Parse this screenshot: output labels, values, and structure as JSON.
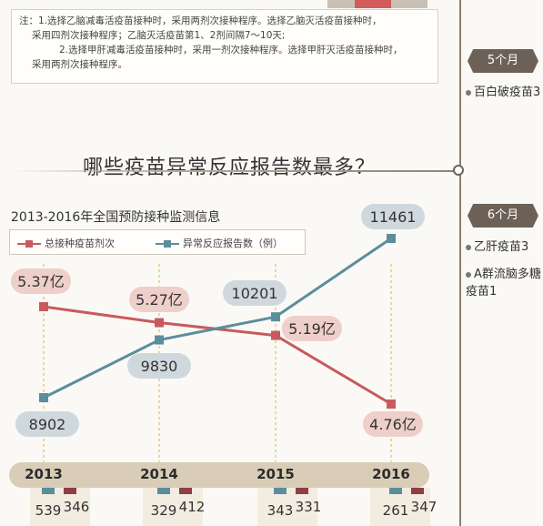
{
  "notes": [
    "注：1.选择乙脑减毒活疫苗接种时，采用两剂次接种程序。选择乙脑灭活疫苗接种时，",
    "采用四剂次接种程序；乙脑灭活疫苗第1、2剂间隔7～10天;",
    "2.选择甲肝减毒活疫苗接种时，采用一剂次接种程序。选择甲肝灭活疫苗接种时，",
    "采用两剂次接种程序。"
  ],
  "heading": "哪些疫苗异常反应报告数最多？",
  "chart_title": "2013-2016年全国预防接种监测信息",
  "legend": {
    "doses": "总接种疫苗剂次",
    "reports": "异常反应报告数（例）"
  },
  "colors": {
    "doses": "#c85a5e",
    "reports": "#5b8e9c",
    "doses_label_bg": "#efcfca",
    "reports_label_bg": "#cfd9dd"
  },
  "chart_data": {
    "type": "line",
    "title": "2013-2016年全国预防接种监测信息",
    "categories": [
      "2013",
      "2014",
      "2015",
      "2016"
    ],
    "series": [
      {
        "name": "总接种疫苗剂次",
        "values": [
          5.37,
          5.27,
          5.19,
          4.76
        ],
        "labels": [
          "5.37亿",
          "5.27亿",
          "5.19亿",
          "4.76亿"
        ]
      },
      {
        "name": "异常反应报告数（例）",
        "values": [
          8902,
          9830,
          10201,
          11461
        ],
        "labels": [
          "8902",
          "9830",
          "10201",
          "11461"
        ]
      }
    ],
    "sub_bars": [
      {
        "year": "2013",
        "a": 539,
        "b": 346
      },
      {
        "year": "2014",
        "a": 329,
        "b": 412
      },
      {
        "year": "2015",
        "a": 343,
        "b": 331
      },
      {
        "year": "2016",
        "a": 261,
        "b": 347
      }
    ]
  },
  "timeline": [
    {
      "badge": "5个月",
      "items": [
        "百白破疫苗3"
      ]
    },
    {
      "badge": "6个月",
      "items": [
        "乙肝疫苗3",
        "A群流脑多糖疫苗1"
      ]
    }
  ]
}
